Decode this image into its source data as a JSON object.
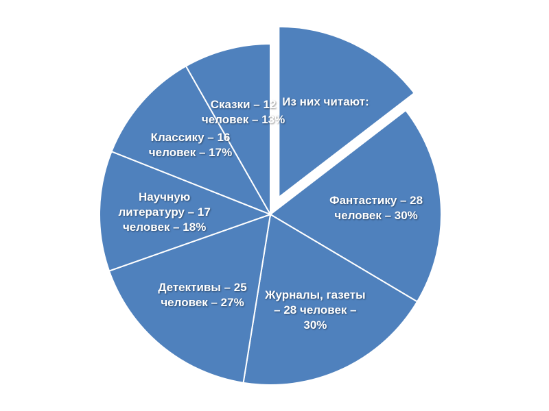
{
  "chart_data": {
    "type": "pie",
    "categories": [
      "Из них читают:",
      "Фантастику – 28 человек – 30%",
      "Журналы, газеты – 28 человек – 30%",
      "Детективы – 25 человек – 27%",
      "Научную литературу – 17 человек – 18%",
      "Классику – 16 человек – 17%",
      "Сказки – 12 человек – 13%"
    ],
    "values": [
      23,
      30,
      30,
      27,
      18,
      17,
      13
    ],
    "explode": [
      true,
      false,
      false,
      false,
      false,
      false,
      false
    ],
    "color": "#4f81bd"
  }
}
